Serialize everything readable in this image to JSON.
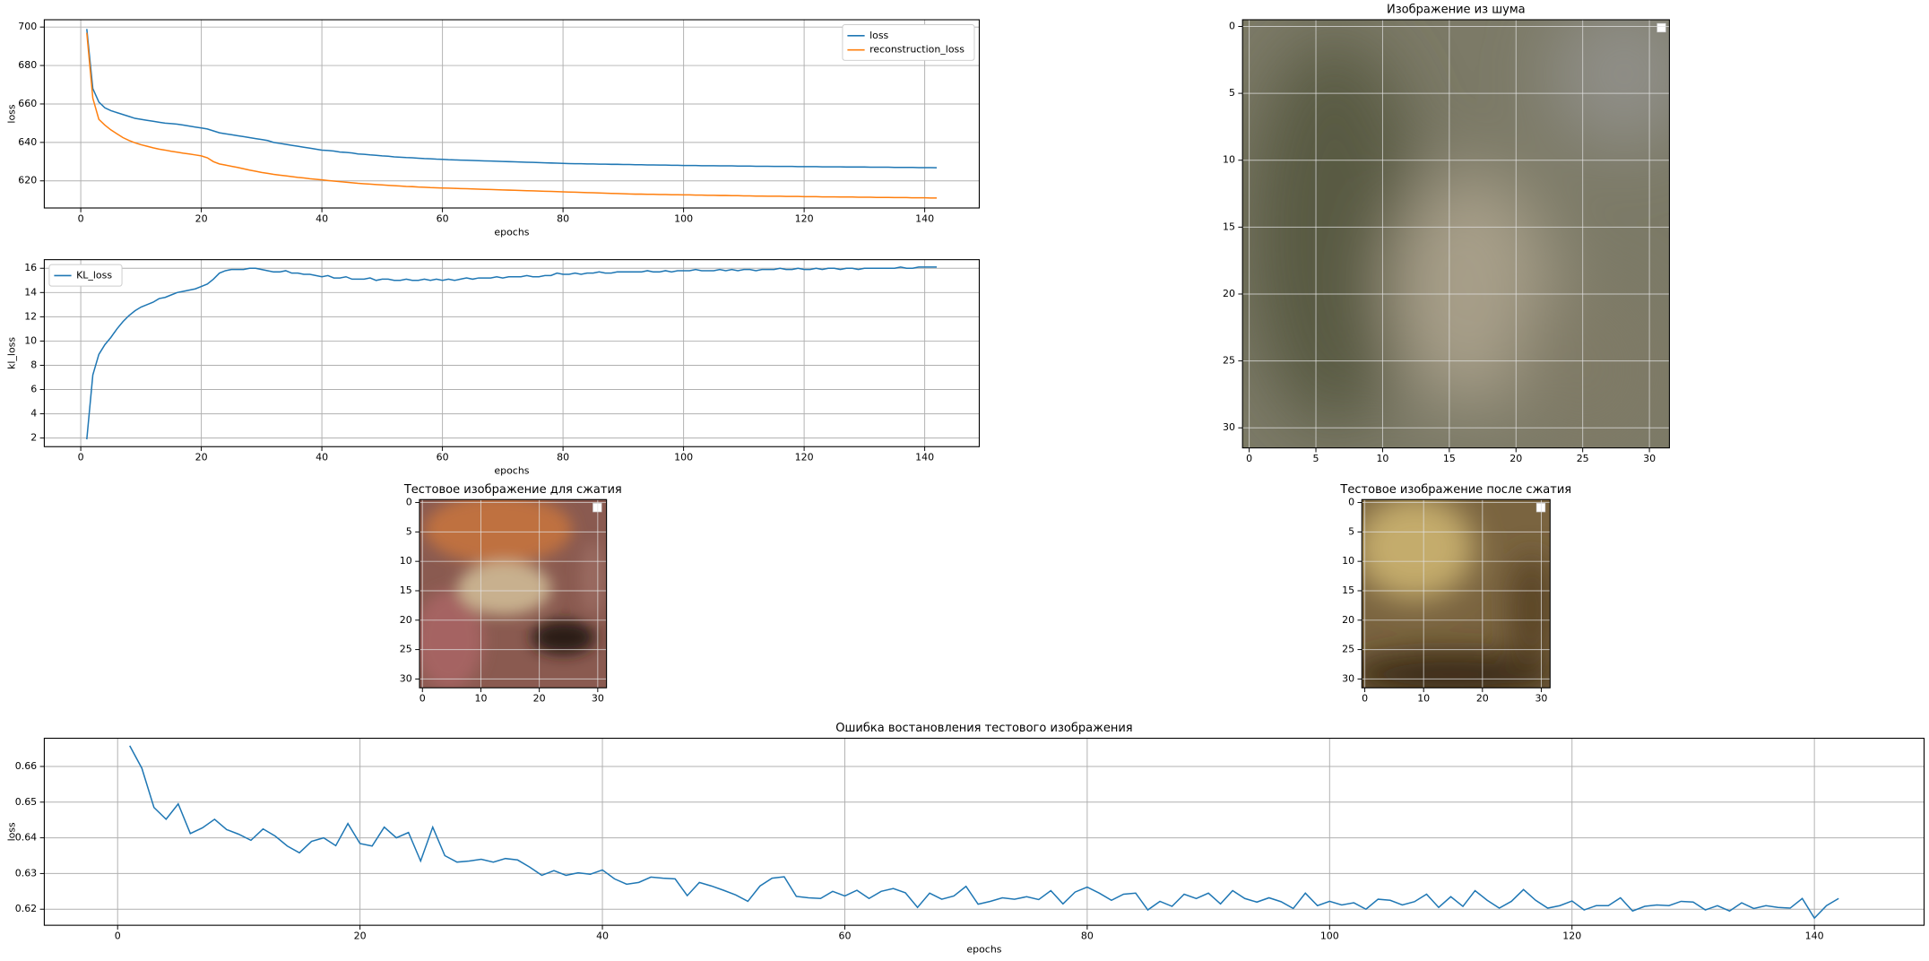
{
  "chart_data": [
    {
      "type": "line",
      "xlabel": "epochs",
      "ylabel": "loss",
      "legend": "upper right",
      "grid": true,
      "xlim": [
        -6.05,
        149.05
      ],
      "ylim": [
        605.9,
        703.8
      ],
      "xticks": [
        0,
        20,
        40,
        60,
        80,
        100,
        120,
        140
      ],
      "yticks": [
        620,
        640,
        660,
        680,
        700
      ],
      "x": [
        1,
        2,
        3,
        4,
        5,
        6,
        7,
        8,
        9,
        10,
        11,
        12,
        13,
        14,
        15,
        16,
        17,
        18,
        19,
        20,
        21,
        22,
        23,
        24,
        25,
        26,
        27,
        28,
        29,
        30,
        31,
        32,
        33,
        34,
        35,
        36,
        37,
        38,
        39,
        40,
        41,
        42,
        43,
        44,
        45,
        46,
        47,
        48,
        49,
        50,
        51,
        52,
        53,
        54,
        55,
        56,
        57,
        58,
        59,
        60,
        61,
        62,
        63,
        64,
        65,
        66,
        67,
        68,
        69,
        70,
        71,
        72,
        73,
        74,
        75,
        76,
        77,
        78,
        79,
        80,
        81,
        82,
        83,
        84,
        85,
        86,
        87,
        88,
        89,
        90,
        91,
        92,
        93,
        94,
        95,
        96,
        97,
        98,
        99,
        100,
        101,
        102,
        103,
        104,
        105,
        106,
        107,
        108,
        109,
        110,
        111,
        112,
        113,
        114,
        115,
        116,
        117,
        118,
        119,
        120,
        121,
        122,
        123,
        124,
        125,
        126,
        127,
        128,
        129,
        130,
        131,
        132,
        133,
        134,
        135,
        136,
        137,
        138,
        139,
        140,
        141,
        142
      ],
      "series": [
        {
          "name": "loss",
          "color": "#1f77b4",
          "values": [
            699,
            668,
            661,
            658,
            656.5,
            655.5,
            654.5,
            653.5,
            652.5,
            652,
            651.5,
            651,
            650.5,
            650,
            649.8,
            649.5,
            649,
            648.5,
            648,
            647.5,
            647,
            646,
            645,
            644.5,
            644,
            643.5,
            643,
            642.5,
            642,
            641.5,
            641,
            640,
            639.5,
            639,
            638.5,
            638,
            637.5,
            637,
            636.5,
            636,
            635.8,
            635.5,
            635,
            634.8,
            634.5,
            634,
            633.8,
            633.5,
            633.3,
            633,
            632.8,
            632.5,
            632.3,
            632.1,
            632,
            631.8,
            631.6,
            631.5,
            631.3,
            631.2,
            631,
            630.9,
            630.8,
            630.7,
            630.6,
            630.5,
            630.4,
            630.3,
            630.2,
            630.1,
            630,
            629.9,
            629.8,
            629.7,
            629.6,
            629.5,
            629.4,
            629.3,
            629.2,
            629.1,
            629,
            628.9,
            628.9,
            628.8,
            628.8,
            628.7,
            628.7,
            628.6,
            628.6,
            628.5,
            628.5,
            628.4,
            628.4,
            628.3,
            628.3,
            628.2,
            628.2,
            628.1,
            628.1,
            628,
            628,
            628,
            627.9,
            627.9,
            627.9,
            627.8,
            627.8,
            627.8,
            627.7,
            627.7,
            627.7,
            627.6,
            627.6,
            627.6,
            627.5,
            627.5,
            627.5,
            627.5,
            627.4,
            627.4,
            627.4,
            627.4,
            627.3,
            627.3,
            627.3,
            627.3,
            627.2,
            627.2,
            627.2,
            627.2,
            627.1,
            627.1,
            627.1,
            627.1,
            627,
            627,
            627,
            627,
            626.9,
            626.9,
            626.9,
            626.8
          ]
        },
        {
          "name": "reconstruction_loss",
          "color": "#ff7f0e",
          "values": [
            697,
            663,
            652,
            649,
            646.5,
            644.5,
            642.5,
            641,
            639.8,
            638.8,
            638,
            637.2,
            636.5,
            636,
            635.4,
            634.9,
            634.4,
            634,
            633.5,
            633,
            632,
            630,
            628.8,
            628.2,
            627.6,
            627,
            626.3,
            625.6,
            625,
            624.4,
            623.9,
            623.4,
            623,
            622.6,
            622.2,
            621.8,
            621.5,
            621.1,
            620.8,
            620.5,
            620.2,
            619.9,
            619.6,
            619.3,
            619,
            618.7,
            618.5,
            618.3,
            618.1,
            617.9,
            617.7,
            617.5,
            617.3,
            617.1,
            617,
            616.8,
            616.7,
            616.5,
            616.4,
            616.3,
            616.2,
            616.1,
            616,
            615.9,
            615.8,
            615.7,
            615.6,
            615.5,
            615.4,
            615.3,
            615.2,
            615.1,
            615,
            614.9,
            614.8,
            614.7,
            614.6,
            614.5,
            614.4,
            614.3,
            614.2,
            614.1,
            614,
            613.9,
            613.8,
            613.7,
            613.6,
            613.5,
            613.4,
            613.3,
            613.2,
            613.1,
            613.1,
            613,
            613,
            612.9,
            612.9,
            612.8,
            612.8,
            612.7,
            612.7,
            612.6,
            612.6,
            612.5,
            612.5,
            612.4,
            612.4,
            612.3,
            612.3,
            612.2,
            612.2,
            612.1,
            612.1,
            612,
            612,
            612,
            611.9,
            611.9,
            611.9,
            611.8,
            611.8,
            611.8,
            611.7,
            611.7,
            611.7,
            611.6,
            611.6,
            611.6,
            611.5,
            611.5,
            611.5,
            611.4,
            611.4,
            611.4,
            611.3,
            611.3,
            611.3,
            611.2,
            611.2,
            611.2,
            611.1,
            611.1
          ]
        }
      ]
    },
    {
      "type": "line",
      "xlabel": "epochs",
      "ylabel": "kl_loss",
      "legend": "upper left",
      "grid": true,
      "xlim": [
        -6.05,
        149.05
      ],
      "ylim": [
        1.29,
        16.71
      ],
      "xticks": [
        0,
        20,
        40,
        60,
        80,
        100,
        120,
        140
      ],
      "yticks": [
        2,
        4,
        6,
        8,
        10,
        12,
        14,
        16
      ],
      "x": [
        1,
        2,
        3,
        4,
        5,
        6,
        7,
        8,
        9,
        10,
        11,
        12,
        13,
        14,
        15,
        16,
        17,
        18,
        19,
        20,
        21,
        22,
        23,
        24,
        25,
        26,
        27,
        28,
        29,
        30,
        31,
        32,
        33,
        34,
        35,
        36,
        37,
        38,
        39,
        40,
        41,
        42,
        43,
        44,
        45,
        46,
        47,
        48,
        49,
        50,
        51,
        52,
        53,
        54,
        55,
        56,
        57,
        58,
        59,
        60,
        61,
        62,
        63,
        64,
        65,
        66,
        67,
        68,
        69,
        70,
        71,
        72,
        73,
        74,
        75,
        76,
        77,
        78,
        79,
        80,
        81,
        82,
        83,
        84,
        85,
        86,
        87,
        88,
        89,
        90,
        91,
        92,
        93,
        94,
        95,
        96,
        97,
        98,
        99,
        100,
        101,
        102,
        103,
        104,
        105,
        106,
        107,
        108,
        109,
        110,
        111,
        112,
        113,
        114,
        115,
        116,
        117,
        118,
        119,
        120,
        121,
        122,
        123,
        124,
        125,
        126,
        127,
        128,
        129,
        130,
        131,
        132,
        133,
        134,
        135,
        136,
        137,
        138,
        139,
        140,
        141,
        142
      ],
      "series": [
        {
          "name": "KL_loss",
          "color": "#1f77b4",
          "values": [
            1.9,
            7.2,
            8.9,
            9.7,
            10.3,
            11,
            11.6,
            12.1,
            12.5,
            12.8,
            13,
            13.2,
            13.5,
            13.6,
            13.8,
            14,
            14.1,
            14.2,
            14.3,
            14.5,
            14.7,
            15.1,
            15.6,
            15.8,
            15.9,
            15.9,
            15.9,
            16,
            16,
            15.9,
            15.8,
            15.7,
            15.7,
            15.8,
            15.6,
            15.6,
            15.5,
            15.5,
            15.4,
            15.3,
            15.4,
            15.2,
            15.2,
            15.3,
            15.1,
            15.1,
            15.1,
            15.2,
            15,
            15.1,
            15.1,
            15,
            15,
            15.1,
            15,
            15,
            15.1,
            15,
            15.1,
            15,
            15.1,
            15,
            15.1,
            15.2,
            15.1,
            15.2,
            15.2,
            15.2,
            15.3,
            15.2,
            15.3,
            15.3,
            15.3,
            15.4,
            15.3,
            15.3,
            15.4,
            15.4,
            15.6,
            15.5,
            15.5,
            15.6,
            15.5,
            15.6,
            15.6,
            15.7,
            15.6,
            15.6,
            15.7,
            15.7,
            15.7,
            15.7,
            15.7,
            15.8,
            15.7,
            15.7,
            15.8,
            15.7,
            15.8,
            15.8,
            15.8,
            15.9,
            15.8,
            15.8,
            15.8,
            15.9,
            15.8,
            15.9,
            15.8,
            15.9,
            15.9,
            15.8,
            15.9,
            15.9,
            15.9,
            16,
            15.9,
            15.9,
            16,
            15.9,
            15.9,
            16,
            15.9,
            16,
            16,
            15.9,
            16,
            16,
            15.9,
            16,
            16,
            16,
            16,
            16,
            16,
            16.1,
            16,
            16,
            16.1,
            16.1,
            16.1,
            16.1
          ]
        }
      ]
    },
    {
      "type": "image",
      "title": "Изображение из шума",
      "grid": true,
      "xlim": [
        -0.5,
        31.5
      ],
      "ylim": [
        31.5,
        -0.5
      ],
      "xticks": [
        0,
        5,
        10,
        15,
        20,
        25,
        30
      ],
      "yticks": [
        0,
        5,
        10,
        15,
        20,
        25,
        30
      ]
    },
    {
      "type": "image",
      "title": "Тестовое изображение для сжатия",
      "grid": true,
      "xlim": [
        -0.5,
        31.5
      ],
      "ylim": [
        31.5,
        -0.5
      ],
      "xticks": [
        0,
        10,
        20,
        30
      ],
      "yticks": [
        0,
        5,
        10,
        15,
        20,
        25,
        30
      ]
    },
    {
      "type": "image",
      "title": "Тестовое изображение после сжатия",
      "grid": true,
      "xlim": [
        -0.5,
        31.5
      ],
      "ylim": [
        31.5,
        -0.5
      ],
      "xticks": [
        0,
        10,
        20,
        30
      ],
      "yticks": [
        0,
        5,
        10,
        15,
        20,
        25,
        30
      ]
    },
    {
      "type": "line",
      "title": "Ошибка востановления тестового изображения",
      "xlabel": "epochs",
      "ylabel": "loss",
      "grid": true,
      "xlim": [
        -6.05,
        149.05
      ],
      "ylim": [
        0.6155,
        0.6679
      ],
      "xticks": [
        0,
        20,
        40,
        60,
        80,
        100,
        120,
        140
      ],
      "yticks": [
        0.62,
        0.63,
        0.64,
        0.65,
        0.66
      ],
      "x": [
        1,
        2,
        3,
        4,
        5,
        6,
        7,
        8,
        9,
        10,
        11,
        12,
        13,
        14,
        15,
        16,
        17,
        18,
        19,
        20,
        21,
        22,
        23,
        24,
        25,
        26,
        27,
        28,
        29,
        30,
        31,
        32,
        33,
        34,
        35,
        36,
        37,
        38,
        39,
        40,
        41,
        42,
        43,
        44,
        45,
        46,
        47,
        48,
        49,
        50,
        51,
        52,
        53,
        54,
        55,
        56,
        57,
        58,
        59,
        60,
        61,
        62,
        63,
        64,
        65,
        66,
        67,
        68,
        69,
        70,
        71,
        72,
        73,
        74,
        75,
        76,
        77,
        78,
        79,
        80,
        81,
        82,
        83,
        84,
        85,
        86,
        87,
        88,
        89,
        90,
        91,
        92,
        93,
        94,
        95,
        96,
        97,
        98,
        99,
        100,
        101,
        102,
        103,
        104,
        105,
        106,
        107,
        108,
        109,
        110,
        111,
        112,
        113,
        114,
        115,
        116,
        117,
        118,
        119,
        120,
        121,
        122,
        123,
        124,
        125,
        126,
        127,
        128,
        129,
        130,
        131,
        132,
        133,
        134,
        135,
        136,
        137,
        138,
        139,
        140,
        141,
        142
      ],
      "series": [
        {
          "color": "#1f77b4",
          "values": [
            0.6658,
            0.6595,
            0.6485,
            0.6452,
            0.6495,
            0.6412,
            0.6428,
            0.6452,
            0.6423,
            0.641,
            0.6393,
            0.6425,
            0.6405,
            0.6377,
            0.6358,
            0.639,
            0.64,
            0.6378,
            0.644,
            0.6384,
            0.6377,
            0.643,
            0.64,
            0.6415,
            0.6335,
            0.643,
            0.635,
            0.6332,
            0.6335,
            0.634,
            0.6332,
            0.6342,
            0.6338,
            0.6318,
            0.6295,
            0.6308,
            0.6295,
            0.6302,
            0.6298,
            0.631,
            0.6285,
            0.627,
            0.6275,
            0.629,
            0.6287,
            0.6285,
            0.6238,
            0.6275,
            0.6265,
            0.6253,
            0.624,
            0.6222,
            0.6265,
            0.6287,
            0.6291,
            0.6236,
            0.6232,
            0.623,
            0.625,
            0.6237,
            0.6253,
            0.623,
            0.625,
            0.6258,
            0.6246,
            0.6205,
            0.6245,
            0.6228,
            0.6237,
            0.6264,
            0.6214,
            0.6222,
            0.6232,
            0.6228,
            0.6235,
            0.6227,
            0.6252,
            0.6215,
            0.6248,
            0.6262,
            0.6245,
            0.6225,
            0.6242,
            0.6245,
            0.6198,
            0.6222,
            0.6208,
            0.6242,
            0.623,
            0.6245,
            0.6215,
            0.6252,
            0.623,
            0.622,
            0.6232,
            0.6221,
            0.6202,
            0.6245,
            0.621,
            0.6222,
            0.6212,
            0.6218,
            0.62,
            0.6228,
            0.6225,
            0.6212,
            0.6221,
            0.6242,
            0.6205,
            0.6235,
            0.6208,
            0.6252,
            0.6225,
            0.6203,
            0.6222,
            0.6255,
            0.6225,
            0.6203,
            0.621,
            0.6223,
            0.6198,
            0.621,
            0.621,
            0.6232,
            0.6195,
            0.6208,
            0.6212,
            0.621,
            0.6222,
            0.622,
            0.6198,
            0.621,
            0.6195,
            0.6218,
            0.6202,
            0.621,
            0.6205,
            0.6203,
            0.623,
            0.6175,
            0.621,
            0.623
          ]
        }
      ]
    }
  ]
}
